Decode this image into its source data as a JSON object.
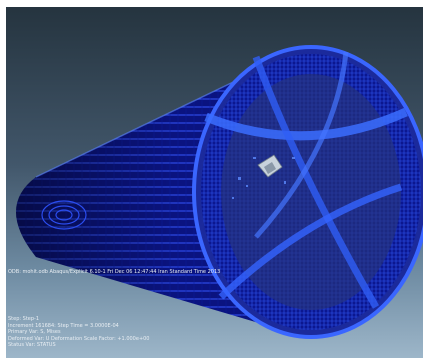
{
  "viewport": {
    "odb_line": "ODB: mohit.odb    Abaqus/Explicit 6.10-1    Fri Dec 06 12:47:44 Iran Standard Time 2013",
    "step_info": [
      "Step: Step-1",
      "Increment     161684: Step Time =   3.0000E-04",
      "Primary Var: S, Mises",
      "Deformed Var: U   Deformation Scale Factor: +1.000e+00",
      "Status Var: STATUS"
    ]
  },
  "colors": {
    "mesh_dark": "#08106a",
    "mesh_mid": "#1a2fd0",
    "mesh_bright": "#3a6bff",
    "background_top": "#25343f",
    "background_bottom": "#9db6c9"
  },
  "icons": {
    "model": "cylindrical-shell-mesh-icon",
    "probe": "deformed-projectile-icon"
  }
}
